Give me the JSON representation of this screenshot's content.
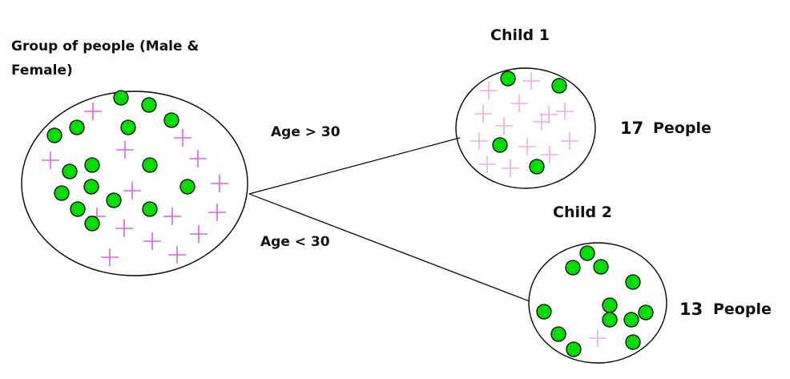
{
  "parent": {
    "title_line1": "Group of people (Male &",
    "title_line2": "Female)"
  },
  "edges": {
    "upper_label": "Age > 30",
    "lower_label": "Age < 30"
  },
  "child1": {
    "title": "Child 1",
    "count": "17",
    "count_unit": "People"
  },
  "child2": {
    "title": "Child 2",
    "count": "13",
    "count_unit": "People"
  },
  "colors": {
    "dot_fill": "#00dd00",
    "cross_parent": "#e060e0",
    "cross_child1": "#f0a8e8",
    "cross_child2": "#f0a8e8",
    "outline": "#000000"
  }
}
